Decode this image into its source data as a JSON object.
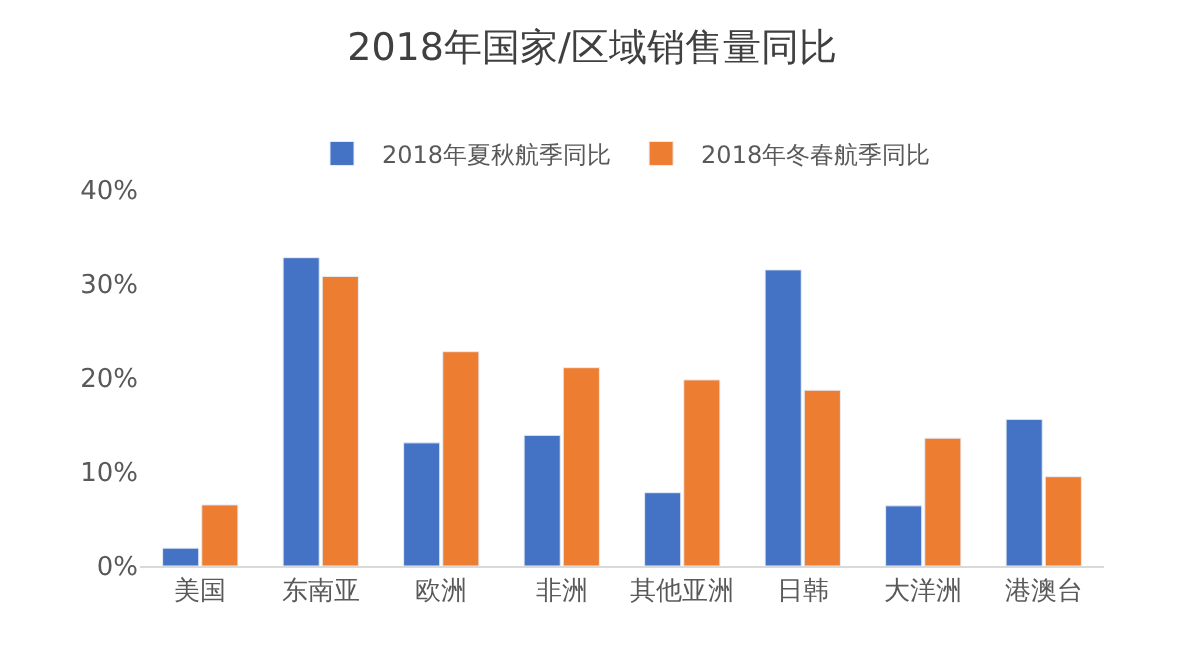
{
  "chart_data": {
    "type": "bar",
    "title": "2018年国家/区域销售量同比",
    "categories": [
      "美国",
      "东南亚",
      "欧洲",
      "非洲",
      "其他亚洲",
      "日韩",
      "大洋洲",
      "港澳台"
    ],
    "series": [
      {
        "name": "2018年夏秋航季同比",
        "color": "#4472c4",
        "values": [
          1.9,
          32.8,
          13.1,
          13.9,
          7.8,
          31.5,
          6.4,
          15.6
        ]
      },
      {
        "name": "2018年冬春航季同比",
        "color": "#ed7d31",
        "values": [
          6.5,
          30.8,
          22.8,
          21.1,
          19.8,
          18.7,
          13.6,
          9.5
        ]
      }
    ],
    "ylim": [
      0,
      40
    ],
    "yticks": [
      {
        "value": 0,
        "label": "0%"
      },
      {
        "value": 10,
        "label": "10%"
      },
      {
        "value": 20,
        "label": "20%"
      },
      {
        "value": 30,
        "label": "30%"
      },
      {
        "value": 40,
        "label": "40%"
      }
    ],
    "grid": false,
    "legend": "top"
  }
}
